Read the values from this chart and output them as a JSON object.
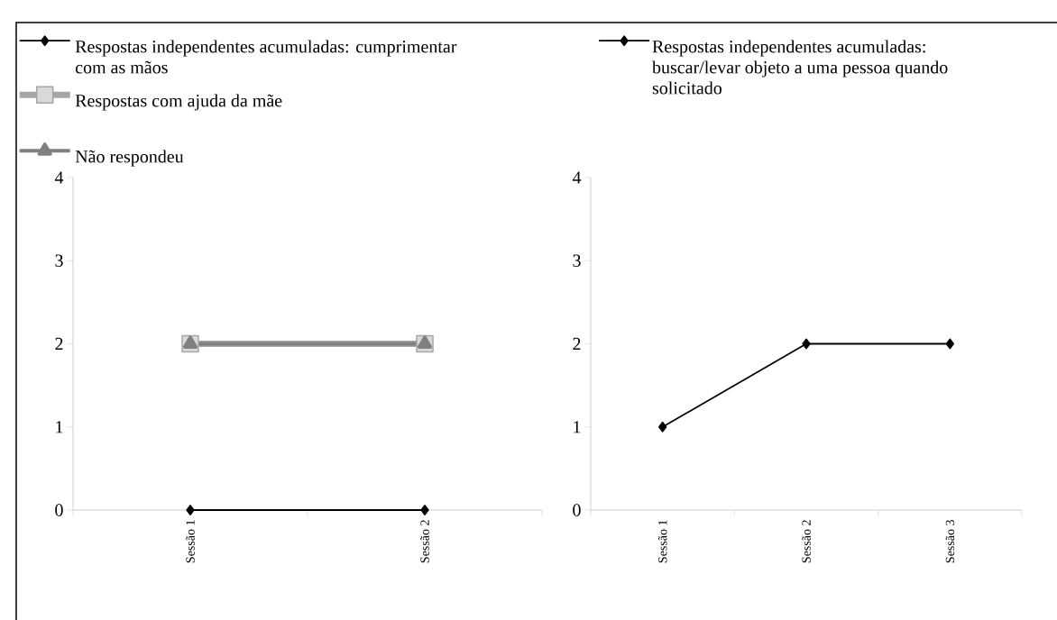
{
  "chart_data": [
    {
      "type": "line",
      "categories": [
        "Sessão 1",
        "Sessão 2"
      ],
      "ylim": [
        0,
        4
      ],
      "yticks": [
        0,
        1,
        2,
        3,
        4
      ],
      "legend": "top left",
      "series": [
        {
          "name": "Respostas independentes acumuladas: cumprimentar com as mãos",
          "color": "#000000",
          "values": [
            0,
            0
          ],
          "marker": "diamond"
        },
        {
          "name": "Respostas com ajuda da mãe",
          "color": "#a6a6a6",
          "values": [
            2,
            2
          ],
          "marker": "square"
        },
        {
          "name": "Não respondeu",
          "color": "#808080",
          "values": [
            2,
            2
          ],
          "marker": "triangle"
        }
      ]
    },
    {
      "type": "line",
      "categories": [
        "Sessão 1",
        "Sessão 2",
        "Sessão 3"
      ],
      "ylim": [
        0,
        4
      ],
      "yticks": [
        0,
        1,
        2,
        3,
        4
      ],
      "legend": "top left",
      "series": [
        {
          "name": "Respostas independentes acumuladas: buscar/levar objeto a uma pessoa quando solicitado",
          "color": "#000000",
          "values": [
            1,
            2,
            2
          ],
          "marker": "diamond"
        }
      ]
    }
  ]
}
